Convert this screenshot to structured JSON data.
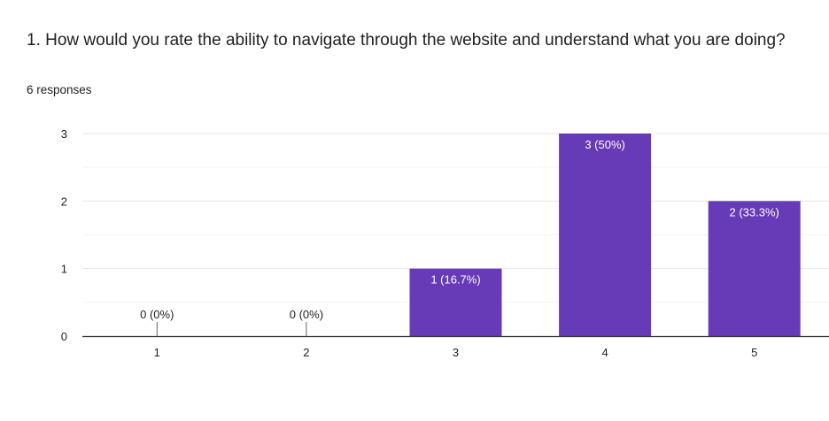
{
  "question": {
    "title": "1. How would you rate the ability to navigate through the website and understand what you are doing?",
    "responses": "6 responses"
  },
  "colors": {
    "bar": "#673ab7",
    "grid": "#e6e6e6",
    "axis": "#333333",
    "label_inside": "#ffffff",
    "label_outside": "#222222"
  },
  "chart_data": {
    "type": "bar",
    "title": "",
    "xlabel": "",
    "ylabel": "",
    "categories": [
      "1",
      "2",
      "3",
      "4",
      "5"
    ],
    "values": [
      0,
      0,
      1,
      3,
      2
    ],
    "data_labels": [
      "0 (0%)",
      "0 (0%)",
      "1 (16.7%)",
      "3 (50%)",
      "2 (33.3%)"
    ],
    "ylim": [
      0,
      3
    ],
    "yticks": [
      0,
      1,
      2,
      3
    ],
    "grid": true,
    "legend": "none"
  }
}
